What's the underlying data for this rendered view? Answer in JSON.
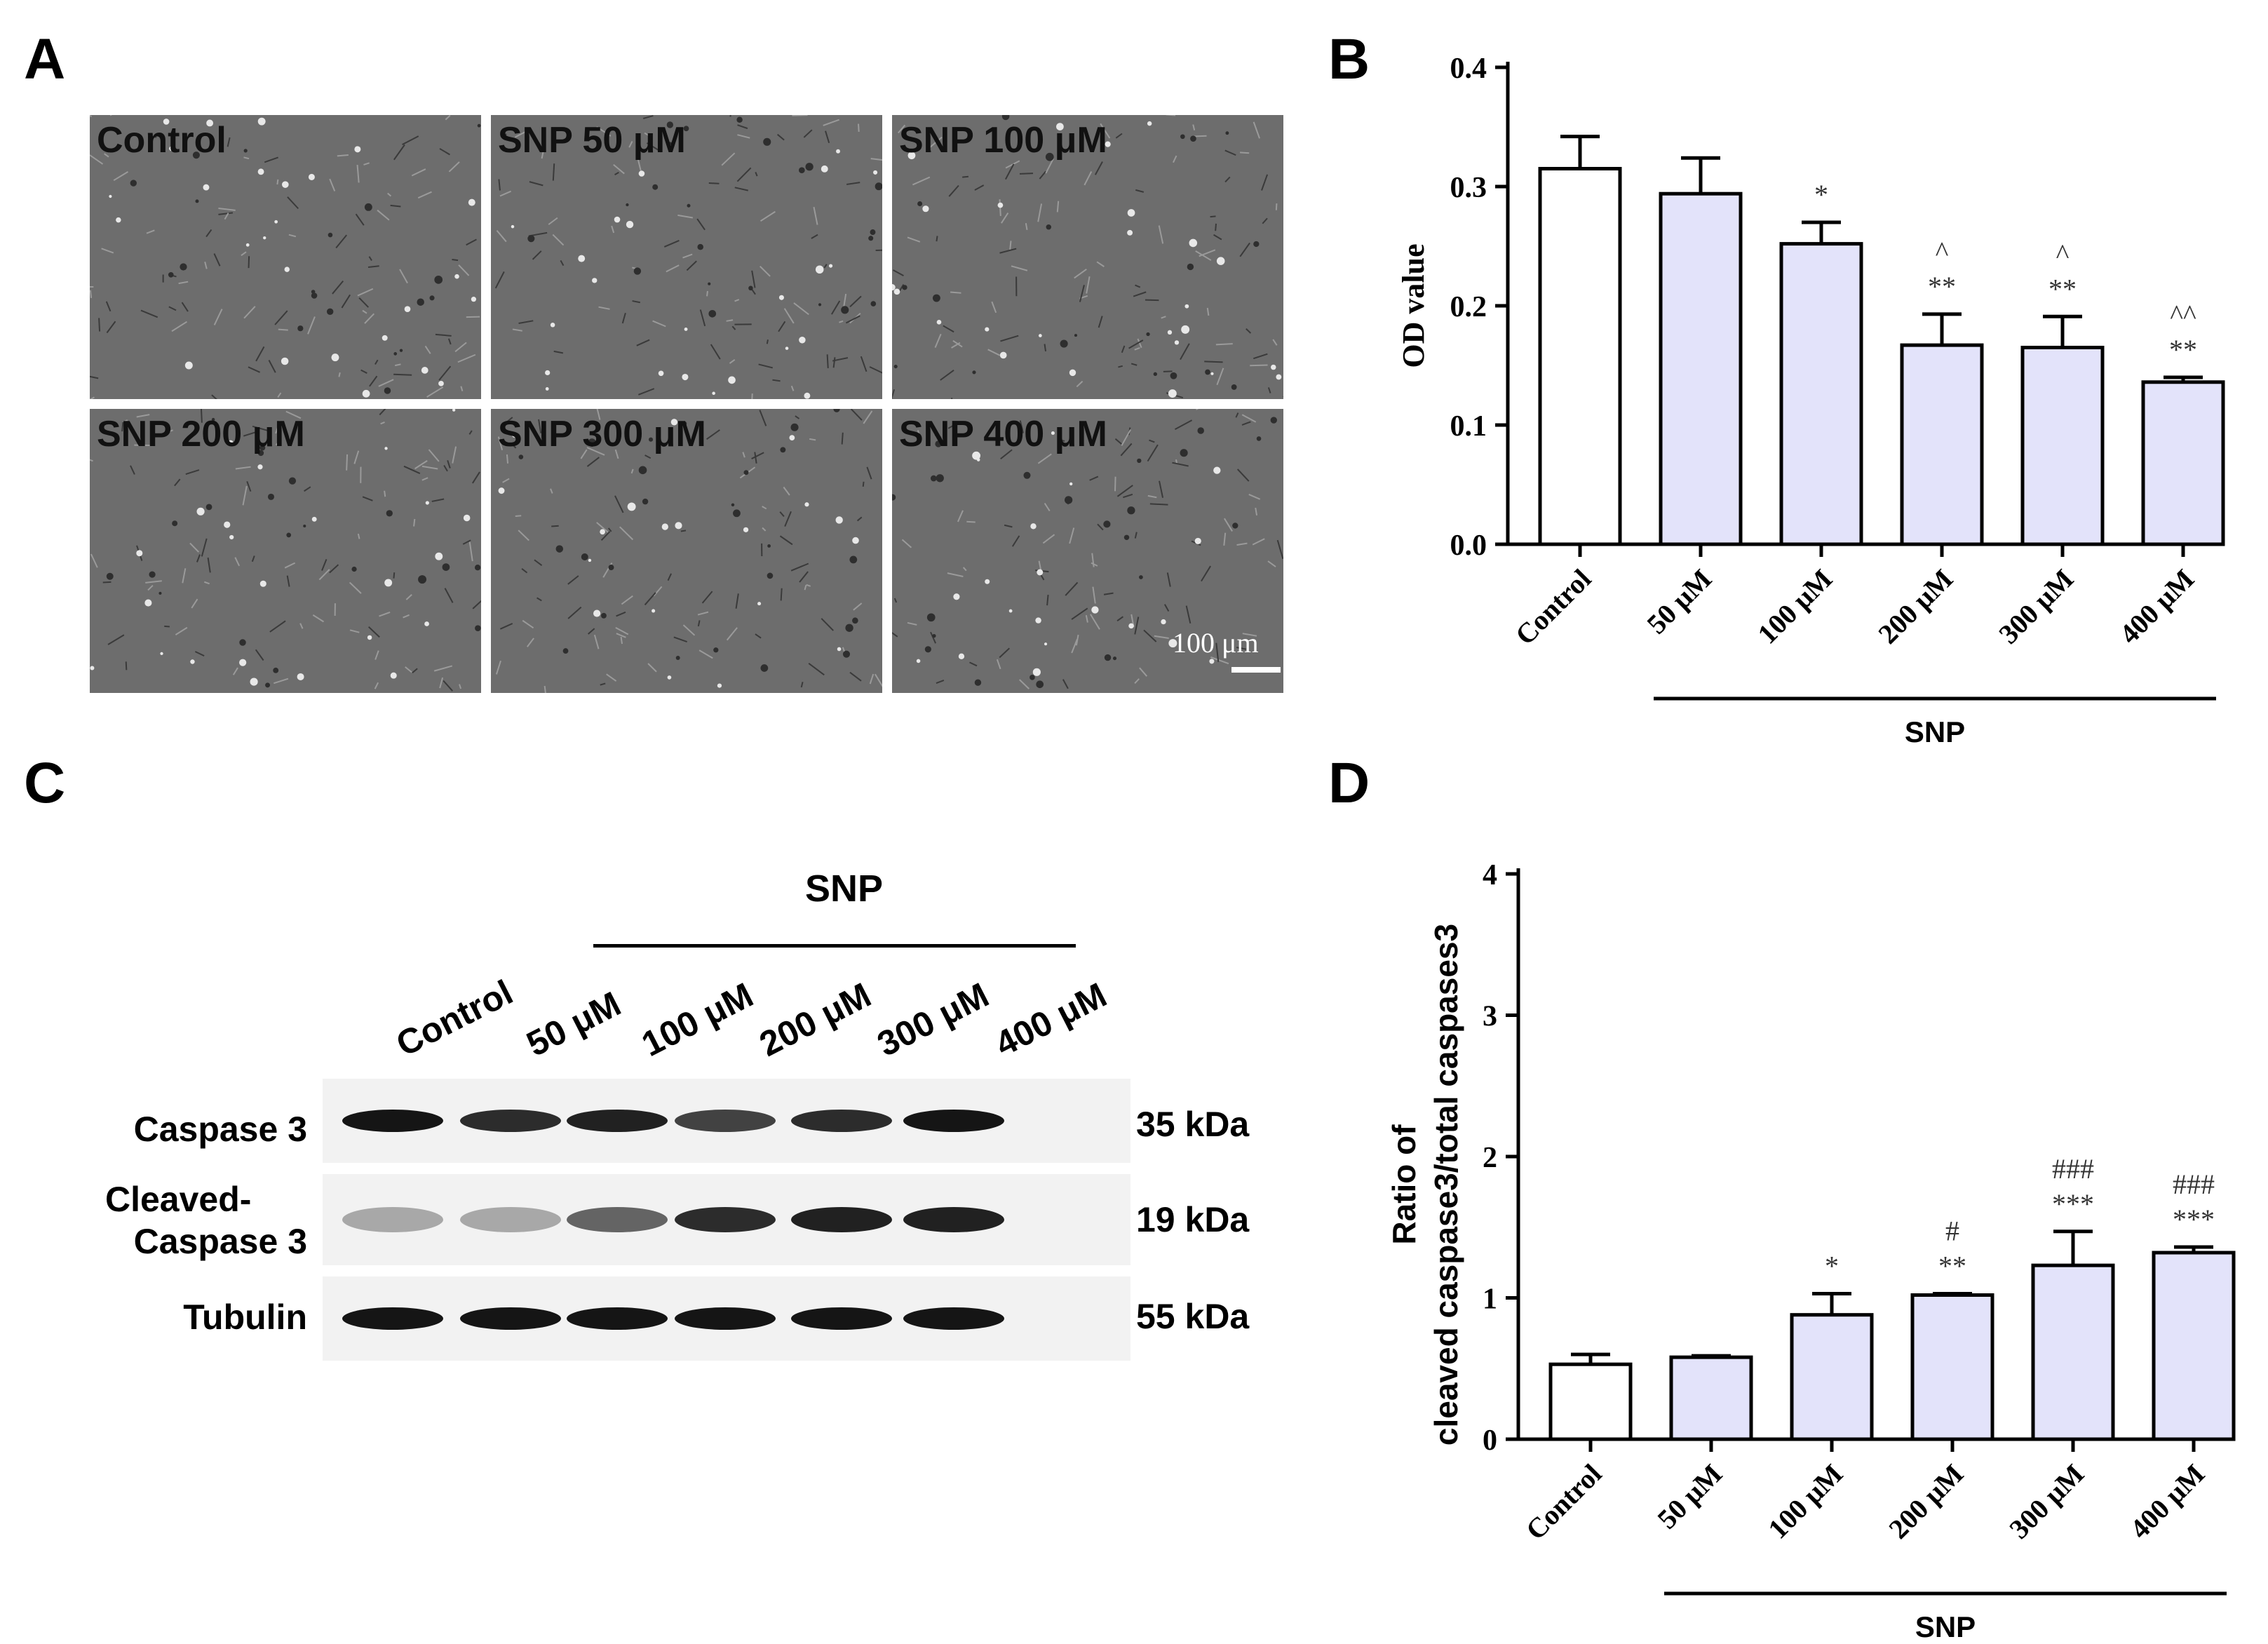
{
  "panels": {
    "a": "A",
    "b": "B",
    "c": "C",
    "d": "D"
  },
  "micrographs": [
    {
      "label": "Control"
    },
    {
      "label": "SNP 50 μM"
    },
    {
      "label": "SNP 100 μM"
    },
    {
      "label": "SNP 200 μM"
    },
    {
      "label": "SNP 300 μM"
    },
    {
      "label": "SNP 400 μM"
    }
  ],
  "scale_bar": {
    "label": "100 μm"
  },
  "chart_data": [
    {
      "panel": "B",
      "type": "bar",
      "categories": [
        "Control",
        "50 μM",
        "100 μM",
        "200 μM",
        "300 μM",
        "400 μM"
      ],
      "values": [
        0.315,
        0.294,
        0.252,
        0.167,
        0.165,
        0.136
      ],
      "errors": [
        0.027,
        0.03,
        0.018,
        0.026,
        0.026,
        0.004
      ],
      "annotations": [
        [],
        [],
        [
          "*"
        ],
        [
          "**",
          "^"
        ],
        [
          "**",
          "^"
        ],
        [
          "**",
          "^^"
        ]
      ],
      "ylabel": "OD value",
      "ylim": [
        0,
        0.4
      ],
      "yticks": [
        "0.0",
        "0.1",
        "0.2",
        "0.3",
        "0.4"
      ],
      "group_label": "SNP",
      "bar_colors": {
        "control": "#ffffff",
        "treated": "#e3e3fa"
      }
    },
    {
      "panel": "D",
      "type": "bar",
      "categories": [
        "Control",
        "50 μM",
        "100 μM",
        "200 μM",
        "300 μM",
        "400 μM"
      ],
      "values": [
        0.53,
        0.58,
        0.88,
        1.02,
        1.23,
        1.32
      ],
      "errors": [
        0.07,
        0.01,
        0.15,
        0.01,
        0.24,
        0.04
      ],
      "annotations": [
        [],
        [],
        [
          "*"
        ],
        [
          "**",
          "#"
        ],
        [
          "***",
          "###"
        ],
        [
          "***",
          "###"
        ]
      ],
      "ylabel_lines": [
        "Ratio of",
        "cleaved caspase3/total caspases3"
      ],
      "ylim": [
        0,
        4
      ],
      "yticks": [
        "0",
        "1",
        "2",
        "3",
        "4"
      ],
      "group_label": "SNP",
      "bar_colors": {
        "control": "#ffffff",
        "treated": "#e3e3fa"
      }
    }
  ],
  "western_blot": {
    "group_label": "SNP",
    "lanes": [
      "Control",
      "50 μM",
      "100 μM",
      "200 μM",
      "300 μM",
      "400 μM"
    ],
    "rows": [
      {
        "label_lines": [
          "Caspase 3"
        ],
        "kda": "35 kDa",
        "intensities": [
          0.95,
          0.85,
          0.9,
          0.75,
          0.85,
          0.95
        ]
      },
      {
        "label_lines": [
          "Cleaved-",
          "Caspase 3"
        ],
        "kda": "19 kDa",
        "intensities": [
          0.3,
          0.3,
          0.6,
          0.85,
          0.9,
          0.9
        ]
      },
      {
        "label_lines": [
          "Tubulin"
        ],
        "kda": "55 kDa",
        "intensities": [
          0.95,
          0.95,
          0.95,
          0.95,
          0.95,
          0.95
        ]
      }
    ]
  }
}
